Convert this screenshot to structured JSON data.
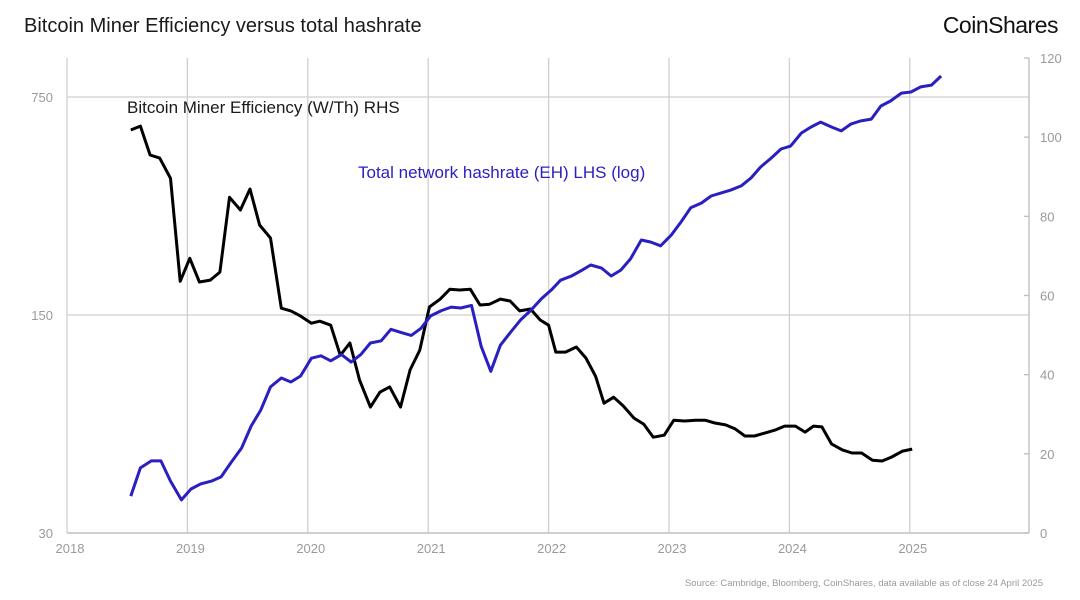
{
  "title": "Bitcoin Miner Efficiency versus total hashrate",
  "logo": "CoinShares",
  "source": "Source: Cambridge, Bloomberg, CoinShares, data available as of close 24 April 2025",
  "chart_data": {
    "type": "line",
    "title": "Bitcoin Miner Efficiency versus total hashrate",
    "grid": true,
    "x_ticks": [
      "2018",
      "2019",
      "2020",
      "2021",
      "2022",
      "2023",
      "2024",
      "2025"
    ],
    "xlim": [
      2018,
      2026
    ],
    "left_axis": {
      "scale": "log",
      "ylim": [
        30,
        750
      ],
      "ticks": [
        "30",
        "150",
        "750"
      ]
    },
    "right_axis": {
      "scale": "linear",
      "ylim": [
        0,
        120
      ],
      "ticks": [
        "0",
        "20",
        "40",
        "60",
        "80",
        "100",
        "120"
      ]
    },
    "series": [
      {
        "name": "Bitcoin Miner Efficiency (W/Th) RHS",
        "axis": "right",
        "color": "#000000",
        "x": [
          2018.53,
          2018.61,
          2018.69,
          2018.77,
          2018.86,
          2018.94,
          2019.02,
          2019.1,
          2019.19,
          2019.27,
          2019.35,
          2019.44,
          2019.52,
          2019.6,
          2019.69,
          2019.78,
          2019.86,
          2019.94,
          2020.03,
          2020.1,
          2020.19,
          2020.27,
          2020.35,
          2020.43,
          2020.52,
          2020.6,
          2020.68,
          2020.77,
          2020.85,
          2020.93,
          2021.01,
          2021.1,
          2021.18,
          2021.26,
          2021.35,
          2021.43,
          2021.51,
          2021.6,
          2021.68,
          2021.76,
          2021.85,
          2021.93,
          2022.0,
          2022.06,
          2022.14,
          2022.23,
          2022.31,
          2022.39,
          2022.46,
          2022.54,
          2022.62,
          2022.71,
          2022.79,
          2022.87,
          2022.96,
          2023.04,
          2023.13,
          2023.22,
          2023.3,
          2023.38,
          2023.47,
          2023.55,
          2023.63,
          2023.71,
          2023.8,
          2023.88,
          2023.96,
          2024.05,
          2024.13,
          2024.2,
          2024.27,
          2024.35,
          2024.44,
          2024.52,
          2024.6,
          2024.69,
          2024.77,
          2024.85,
          2024.94,
          2025.02
        ],
        "y": [
          101.8,
          102.8,
          95.5,
          94.7,
          89.6,
          63.6,
          69.4,
          63.4,
          63.9,
          65.9,
          84.8,
          81.6,
          86.9,
          77.8,
          74.5,
          56.8,
          56.1,
          54.8,
          53.0,
          53.5,
          52.5,
          44.9,
          48.0,
          38.6,
          31.8,
          35.6,
          36.9,
          31.8,
          41.2,
          46.2,
          57.1,
          59.1,
          61.6,
          61.4,
          61.6,
          57.6,
          57.8,
          59.1,
          58.6,
          56.1,
          56.6,
          53.8,
          52.5,
          45.7,
          45.7,
          47.0,
          44.2,
          39.6,
          32.8,
          34.3,
          32.1,
          29.0,
          27.5,
          24.2,
          24.7,
          28.5,
          28.3,
          28.5,
          28.5,
          27.8,
          27.3,
          26.3,
          24.5,
          24.5,
          25.3,
          26.0,
          27.0,
          27.0,
          25.5,
          27.0,
          26.8,
          22.5,
          21.0,
          20.2,
          20.2,
          18.4,
          18.2,
          19.2,
          20.7,
          21.2
        ]
      },
      {
        "name": "Total network hashrate (EH) LHS (log)",
        "axis": "left",
        "color": "#2a1fc0",
        "x": [
          2018.53,
          2018.61,
          2018.7,
          2018.78,
          2018.86,
          2018.95,
          2019.03,
          2019.11,
          2019.2,
          2019.28,
          2019.36,
          2019.45,
          2019.53,
          2019.61,
          2019.69,
          2019.78,
          2019.86,
          2019.94,
          2020.03,
          2020.11,
          2020.19,
          2020.28,
          2020.36,
          2020.44,
          2020.52,
          2020.61,
          2020.69,
          2020.77,
          2020.86,
          2020.94,
          2021.02,
          2021.11,
          2021.19,
          2021.27,
          2021.36,
          2021.44,
          2021.52,
          2021.6,
          2021.69,
          2021.77,
          2021.85,
          2021.94,
          2022.02,
          2022.1,
          2022.19,
          2022.27,
          2022.35,
          2022.44,
          2022.52,
          2022.6,
          2022.68,
          2022.77,
          2022.85,
          2022.93,
          2023.02,
          2023.1,
          2023.18,
          2023.27,
          2023.35,
          2023.43,
          2023.51,
          2023.6,
          2023.68,
          2023.76,
          2023.85,
          2023.93,
          2024.01,
          2024.1,
          2024.18,
          2024.26,
          2024.35,
          2024.43,
          2024.51,
          2024.59,
          2024.68,
          2024.76,
          2024.84,
          2024.93,
          2025.01,
          2025.09,
          2025.18,
          2025.26
        ],
        "y": [
          39.4,
          48.5,
          51.1,
          51.1,
          44.0,
          38.3,
          41.5,
          43.1,
          44.0,
          45.4,
          50.3,
          56.2,
          66.1,
          74.4,
          88.2,
          94.2,
          91.5,
          95.6,
          109,
          111,
          107,
          112,
          106,
          112,
          122,
          124,
          135,
          132,
          129,
          136,
          149,
          155,
          159,
          158,
          161,
          119,
          99,
          120,
          133,
          145,
          155,
          169,
          180,
          194,
          200,
          208,
          217,
          212,
          200,
          209,
          227,
          261,
          257,
          250,
          271,
          298,
          331,
          343,
          361,
          369,
          377,
          389,
          412,
          447,
          478,
          511,
          522,
          575,
          601,
          623,
          601,
          584,
          614,
          628,
          637,
          702,
          728,
          772,
          778,
          808,
          819,
          876
        ]
      }
    ]
  }
}
